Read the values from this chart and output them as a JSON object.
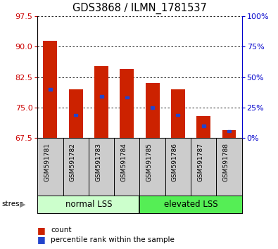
{
  "title": "GDS3868 / ILMN_1781537",
  "samples": [
    "GSM591781",
    "GSM591782",
    "GSM591783",
    "GSM591784",
    "GSM591785",
    "GSM591786",
    "GSM591787",
    "GSM591788"
  ],
  "bar_tops": [
    91.5,
    79.5,
    85.2,
    84.5,
    81.0,
    79.5,
    73.0,
    69.5
  ],
  "bar_base": 67.5,
  "blue_marks": [
    79.5,
    73.2,
    77.8,
    77.5,
    75.0,
    73.2,
    70.5,
    69.2
  ],
  "ylim_left": [
    67.5,
    97.5
  ],
  "yticks_left": [
    67.5,
    75.0,
    82.5,
    90.0,
    97.5
  ],
  "yticks_right_vals": [
    0,
    25,
    50,
    75,
    100
  ],
  "yticks_right_pos": [
    67.5,
    75.0,
    82.5,
    90.0,
    97.5
  ],
  "bar_color": "#cc2200",
  "blue_color": "#2244cc",
  "grid_color": "#000000",
  "bg_plot": "#ffffff",
  "group1_label": "normal LSS",
  "group2_label": "elevated LSS",
  "group1_color": "#ccffcc",
  "group2_color": "#55ee55",
  "tick_label_color_left": "#cc0000",
  "tick_label_color_right": "#0000cc",
  "legend_count_color": "#cc2200",
  "legend_pct_color": "#2244cc",
  "stress_label": "stress",
  "bar_width": 0.55,
  "xtick_bg": "#cccccc"
}
